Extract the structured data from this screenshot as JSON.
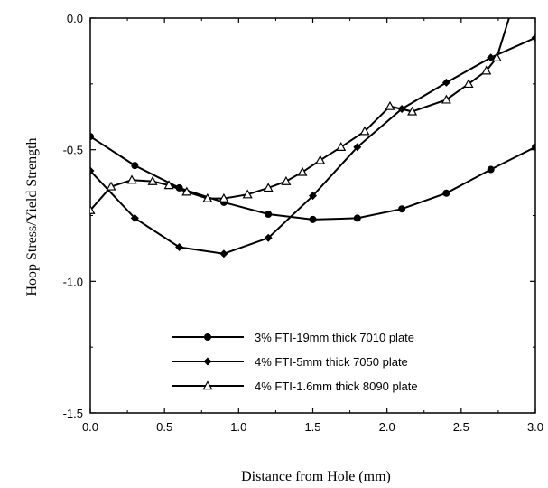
{
  "chart_data": {
    "type": "line",
    "xlabel": "Distance from Hole (mm)",
    "ylabel": "Hoop Stress/Yield Strength",
    "xlim": [
      0,
      3
    ],
    "ylim": [
      -1.5,
      0
    ],
    "x_ticks": [
      "0.0",
      "0.5",
      "1.0",
      "1.5",
      "2.0",
      "2.5",
      "3.0"
    ],
    "y_ticks": [
      "0.0",
      "-0.5",
      "-1.0",
      "-1.5"
    ],
    "grid": false,
    "legend_position": "lower-right",
    "series": [
      {
        "name": "3% FTI-19mm thick 7010 plate",
        "marker": "circle",
        "x": [
          0.0,
          0.3,
          0.6,
          0.9,
          1.2,
          1.5,
          1.8,
          2.1,
          2.4,
          2.7,
          3.0
        ],
        "y": [
          -0.45,
          -0.56,
          -0.645,
          -0.7,
          -0.745,
          -0.765,
          -0.76,
          -0.725,
          -0.665,
          -0.575,
          -0.49
        ]
      },
      {
        "name": "4% FTI-5mm thick 7050 plate",
        "marker": "diamond",
        "x": [
          0.0,
          0.3,
          0.6,
          0.9,
          1.2,
          1.5,
          1.8,
          2.1,
          2.4,
          2.7,
          3.0
        ],
        "y": [
          -0.58,
          -0.76,
          -0.87,
          -0.895,
          -0.835,
          -0.675,
          -0.49,
          -0.345,
          -0.245,
          -0.15,
          -0.075
        ]
      },
      {
        "name": "4% FTI-1.6mm thick 8090 plate",
        "marker": "triangle",
        "x": [
          0.0,
          0.14,
          0.28,
          0.42,
          0.53,
          0.65,
          0.79,
          0.9,
          1.06,
          1.2,
          1.32,
          1.43,
          1.55,
          1.69,
          1.85,
          2.02,
          2.17,
          2.4,
          2.55,
          2.67,
          2.74,
          2.85
        ],
        "y": [
          -0.73,
          -0.64,
          -0.615,
          -0.62,
          -0.635,
          -0.66,
          -0.685,
          -0.685,
          -0.67,
          -0.645,
          -0.62,
          -0.585,
          -0.54,
          -0.49,
          -0.43,
          -0.335,
          -0.355,
          -0.31,
          -0.25,
          -0.2,
          -0.15,
          0.05
        ]
      }
    ]
  }
}
